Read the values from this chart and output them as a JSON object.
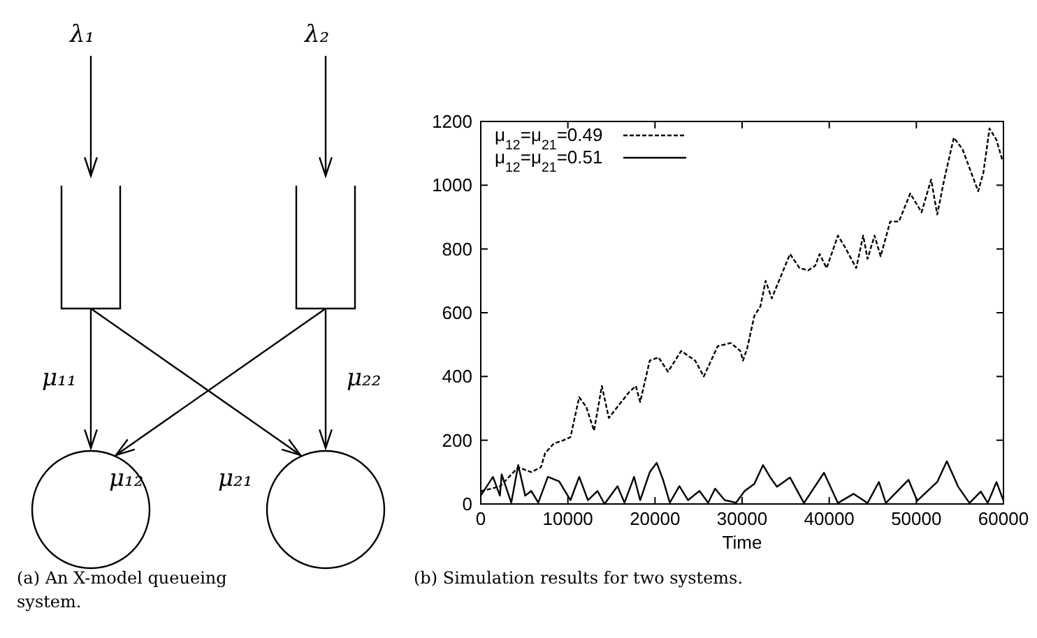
{
  "chart_data": [
    {
      "type": "other",
      "annotations": [
        "λ₁",
        "λ₂",
        "μ₁₁",
        "μ₁₂",
        "μ₂₁",
        "μ₂₂",
        "(a) An X-model queueing system."
      ]
    },
    {
      "type": "line",
      "xlabel": "Time",
      "xlim": [
        0,
        60000
      ],
      "xticks": [
        0,
        10000,
        20000,
        30000,
        40000,
        50000,
        60000
      ],
      "ylim": [
        0,
        1200
      ],
      "yticks": [
        0,
        200,
        400,
        600,
        800,
        1000,
        1200
      ],
      "legend": "top left",
      "annotations": [
        "(b) Simulation results for two systems."
      ],
      "series": [
        {
          "name": "μ$_{12}$=μ$_{21}$=0.49",
          "color": "#000000",
          "line_style": "dashed",
          "x": [
            0,
            2200,
            4300,
            5800,
            6900,
            7400,
            8400,
            9500,
            10300,
            11300,
            12100,
            13000,
            13900,
            14700,
            15700,
            17000,
            17800,
            18300,
            19400,
            20400,
            21500,
            23000,
            24600,
            25600,
            27200,
            28700,
            29800,
            30100,
            30600,
            31400,
            32100,
            32700,
            33400,
            34500,
            35500,
            36600,
            37600,
            38400,
            38900,
            39700,
            41000,
            41800,
            43100,
            43900,
            44400,
            45200,
            45900,
            47000,
            48000,
            49300,
            50600,
            51700,
            52400,
            53200,
            54300,
            55300,
            56400,
            57100,
            57700,
            58400,
            59200,
            59900
          ],
          "values": [
            40,
            55,
            115,
            100,
            115,
            160,
            190,
            200,
            210,
            335,
            305,
            230,
            370,
            270,
            305,
            350,
            370,
            320,
            450,
            460,
            415,
            480,
            450,
            400,
            495,
            505,
            480,
            450,
            490,
            590,
            620,
            700,
            645,
            718,
            784,
            740,
            733,
            748,
            784,
            740,
            842,
            806,
            740,
            842,
            769,
            842,
            777,
            886,
            886,
            974,
            915,
            1018,
            908,
            1018,
            1149,
            1113,
            1032,
            981,
            1040,
            1178,
            1142,
            1076
          ]
        },
        {
          "name": "μ$_{12}$=μ$_{21}$=0.51",
          "color": "#000000",
          "line_style": "solid",
          "x": [
            0,
            1400,
            2200,
            2400,
            3500,
            4300,
            5100,
            5800,
            6600,
            7700,
            9000,
            10300,
            11300,
            12300,
            13400,
            14200,
            15700,
            16500,
            17600,
            18300,
            19400,
            20200,
            20900,
            21700,
            22800,
            23800,
            25100,
            26100,
            26900,
            28000,
            29300,
            30300,
            31400,
            32400,
            33200,
            34000,
            35500,
            37100,
            39400,
            41000,
            42800,
            44400,
            45700,
            46500,
            49100,
            50100,
            52400,
            53500,
            54800,
            56100,
            57400,
            58200,
            59200,
            60000
          ],
          "values": [
            26,
            85,
            26,
            93,
            4,
            122,
            26,
            41,
            4,
            85,
            71,
            12,
            85,
            12,
            41,
            0,
            56,
            4,
            85,
            12,
            100,
            129,
            78,
            4,
            56,
            12,
            41,
            4,
            48,
            12,
            4,
            41,
            63,
            122,
            85,
            54,
            83,
            3,
            98,
            3,
            32,
            3,
            69,
            3,
            76,
            10,
            69,
            134,
            54,
            3,
            39,
            3,
            69,
            10
          ]
        }
      ]
    }
  ]
}
